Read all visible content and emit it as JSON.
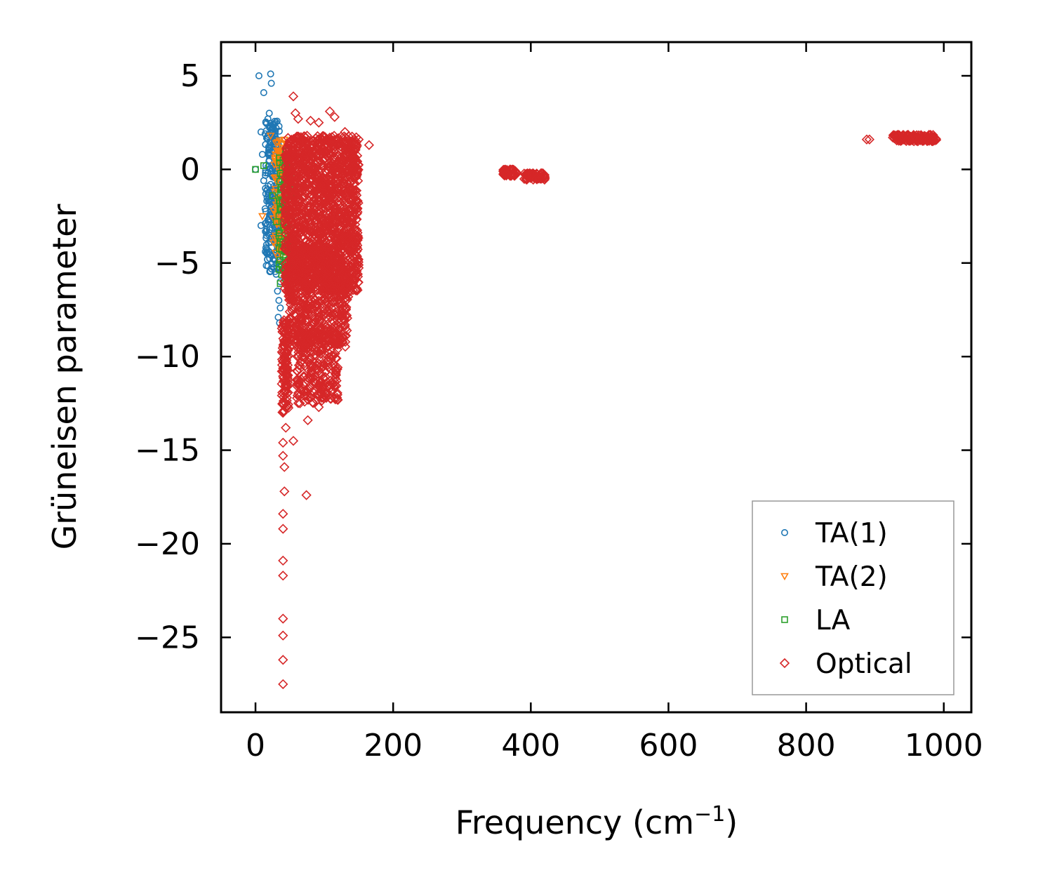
{
  "chart_data": {
    "type": "scatter",
    "title": "",
    "xlabel": "Frequency (cm",
    "xlabel_sup": "−1",
    "xlabel_end": ")",
    "ylabel": "Grüneisen parameter",
    "xlim": [
      -50,
      1040
    ],
    "ylim": [
      -29,
      6.8
    ],
    "xticks": [
      0,
      200,
      400,
      600,
      800,
      1000
    ],
    "xtick_labels": [
      "0",
      "200",
      "400",
      "600",
      "800",
      "1000"
    ],
    "yticks": [
      5,
      0,
      -5,
      -10,
      -15,
      -20,
      -25
    ],
    "ytick_labels": [
      "5",
      "0",
      "−5",
      "−10",
      "−15",
      "−20",
      "−25"
    ],
    "legend_position": "lower-right",
    "series": [
      {
        "name": "TA(1)",
        "marker": "circle",
        "color": "#1f77b4",
        "points": [
          [
            5,
            5.0
          ],
          [
            22,
            5.1
          ],
          [
            23,
            4.6
          ],
          [
            12,
            4.1
          ],
          [
            20,
            3.0
          ],
          [
            18,
            2.7
          ],
          [
            15,
            2.5
          ],
          [
            25,
            2.4
          ],
          [
            8,
            2.0
          ],
          [
            14,
            1.9
          ],
          [
            28,
            1.6
          ],
          [
            10,
            0.8
          ],
          [
            20,
            0.5
          ],
          [
            30,
            0.3
          ],
          [
            0,
            0.0
          ],
          [
            18,
            -0.2
          ],
          [
            25,
            -0.4
          ],
          [
            12,
            -0.6
          ],
          [
            22,
            -0.8
          ],
          [
            15,
            -1.3
          ],
          [
            28,
            -1.5
          ],
          [
            20,
            -1.9
          ],
          [
            14,
            -2.1
          ],
          [
            30,
            -2.5
          ],
          [
            8,
            -3.0
          ],
          [
            16,
            -3.3
          ],
          [
            24,
            -3.6
          ],
          [
            22,
            -3.9
          ],
          [
            32,
            -4.2
          ],
          [
            28,
            -4.8
          ],
          [
            34,
            -5.2
          ],
          [
            30,
            -5.6
          ],
          [
            36,
            -6.0
          ],
          [
            32,
            -6.5
          ],
          [
            34,
            -7.0
          ],
          [
            36,
            -7.4
          ],
          [
            33,
            -7.9
          ],
          [
            35,
            -8.2
          ],
          [
            26,
            -2.9
          ],
          [
            18,
            -2.7
          ],
          [
            27,
            -1.1
          ],
          [
            19,
            1.2
          ],
          [
            24,
            1.8
          ],
          [
            31,
            -3.8
          ],
          [
            29,
            -4.5
          ]
        ]
      },
      {
        "name": "TA(2)",
        "marker": "triangle-down",
        "color": "#ff7f0e",
        "points": [
          [
            22,
            1.8
          ],
          [
            30,
            1.4
          ],
          [
            35,
            1.0
          ],
          [
            38,
            0.4
          ],
          [
            40,
            0.1
          ],
          [
            33,
            -0.5
          ],
          [
            28,
            -1.2
          ],
          [
            36,
            -1.8
          ],
          [
            10,
            -2.5
          ],
          [
            32,
            -2.9
          ],
          [
            38,
            -3.4
          ],
          [
            26,
            -3.9
          ],
          [
            40,
            -4.4
          ],
          [
            34,
            -4.8
          ],
          [
            42,
            -3.1
          ],
          [
            37,
            -2.3
          ],
          [
            39,
            -0.9
          ],
          [
            29,
            0.8
          ]
        ]
      },
      {
        "name": "LA",
        "marker": "square",
        "color": "#2ca02c",
        "points": [
          [
            0,
            0.0
          ],
          [
            12,
            0.2
          ],
          [
            45,
            1.0
          ],
          [
            40,
            0.5
          ],
          [
            48,
            -0.6
          ],
          [
            38,
            -1.1
          ],
          [
            44,
            -1.6
          ],
          [
            42,
            -2.1
          ],
          [
            50,
            -2.5
          ],
          [
            46,
            -3.0
          ],
          [
            34,
            -3.4
          ],
          [
            48,
            -3.8
          ],
          [
            38,
            -4.3
          ],
          [
            44,
            -4.7
          ],
          [
            40,
            -5.4
          ],
          [
            46,
            -5.9
          ],
          [
            36,
            -6.1
          ],
          [
            30,
            -2.8
          ],
          [
            25,
            -1.4
          ]
        ]
      },
      {
        "name": "Optical",
        "marker": "diamond",
        "color": "#d62728",
        "points": [
          [
            55,
            3.9
          ],
          [
            108,
            3.1
          ],
          [
            115,
            2.8
          ],
          [
            58,
            3.0
          ],
          [
            62,
            2.7
          ],
          [
            80,
            2.6
          ],
          [
            92,
            2.5
          ],
          [
            130,
            2.0
          ],
          [
            150,
            1.6
          ],
          [
            165,
            1.3
          ],
          [
            140,
            1.4
          ],
          [
            75,
            1.8
          ],
          [
            50,
            1.5
          ],
          [
            48,
            0.5
          ],
          [
            60,
            0.0
          ],
          [
            90,
            -0.5
          ],
          [
            120,
            -0.8
          ],
          [
            110,
            -1.5
          ],
          [
            70,
            -2.0
          ],
          [
            130,
            -2.3
          ],
          [
            95,
            -3.0
          ],
          [
            55,
            -3.5
          ],
          [
            125,
            -4.0
          ],
          [
            80,
            -4.5
          ],
          [
            105,
            -5.0
          ],
          [
            60,
            -5.5
          ],
          [
            115,
            -6.0
          ],
          [
            45,
            -6.5
          ],
          [
            100,
            -7.0
          ],
          [
            75,
            -7.5
          ],
          [
            50,
            -8.0
          ],
          [
            95,
            -8.5
          ],
          [
            118,
            -8.8
          ],
          [
            62,
            -9.0
          ],
          [
            88,
            -9.5
          ],
          [
            42,
            -10.0
          ],
          [
            105,
            -10.2
          ],
          [
            72,
            -10.5
          ],
          [
            46,
            -11.0
          ],
          [
            100,
            -11.5
          ],
          [
            80,
            -12.0
          ],
          [
            44,
            -12.5
          ],
          [
            92,
            -12.7
          ],
          [
            40,
            -13.0
          ],
          [
            76,
            -13.4
          ],
          [
            44,
            -13.8
          ],
          [
            40,
            -14.6
          ],
          [
            55,
            -14.5
          ],
          [
            40,
            -15.3
          ],
          [
            42,
            -15.9
          ],
          [
            42,
            -17.2
          ],
          [
            74,
            -17.4
          ],
          [
            40,
            -18.4
          ],
          [
            40,
            -19.2
          ],
          [
            40,
            -20.9
          ],
          [
            40,
            -21.7
          ],
          [
            40,
            -24.0
          ],
          [
            40,
            -24.9
          ],
          [
            40,
            -26.2
          ],
          [
            40,
            -27.5
          ],
          [
            360,
            -0.1
          ],
          [
            365,
            -0.2
          ],
          [
            370,
            0.0
          ],
          [
            375,
            -0.3
          ],
          [
            380,
            -0.2
          ],
          [
            395,
            -0.4
          ],
          [
            402,
            -0.3
          ],
          [
            408,
            -0.5
          ],
          [
            415,
            -0.2
          ],
          [
            420,
            -0.3
          ],
          [
            888,
            1.6
          ],
          [
            892,
            1.6
          ],
          [
            930,
            1.8
          ],
          [
            945,
            1.7
          ],
          [
            955,
            1.7
          ],
          [
            965,
            1.6
          ],
          [
            975,
            1.6
          ],
          [
            985,
            1.6
          ]
        ]
      }
    ]
  }
}
